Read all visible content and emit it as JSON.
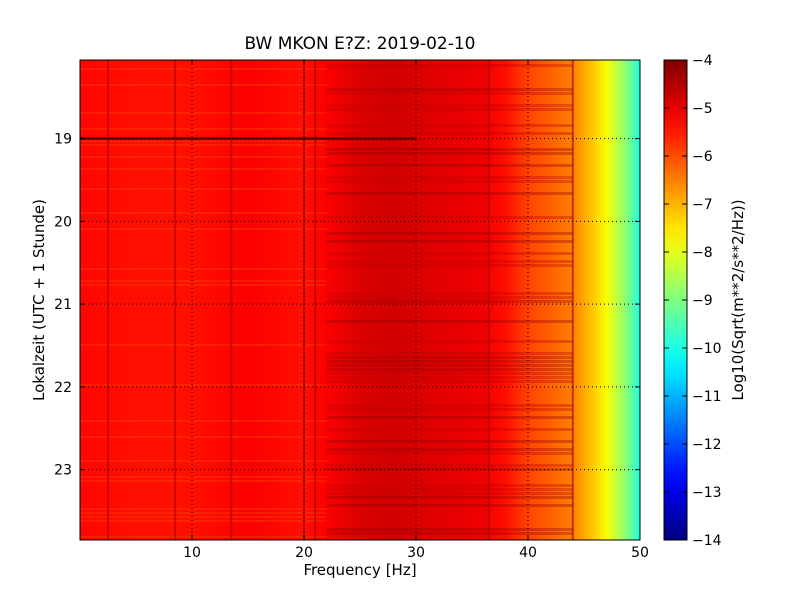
{
  "chart_data": {
    "type": "heatmap",
    "title": "BW MKON E?Z: 2019-02-10",
    "xlabel": "Frequency [Hz]",
    "ylabel": "Lokalzeit (UTC + 1 Stunde)",
    "xlim": [
      0,
      50
    ],
    "ylim_top_to_bottom": [
      18.05,
      23.85
    ],
    "x_ticks": [
      10,
      20,
      30,
      40,
      50
    ],
    "y_ticks": [
      19,
      20,
      21,
      22,
      23
    ],
    "grid": true,
    "colormap": "jet",
    "colorbar": {
      "label": "Log10(Sqrt(m**2/s**2/Hz))",
      "range": [
        -14,
        -4
      ],
      "ticks": [
        -4,
        -5,
        -6,
        -7,
        -8,
        -9,
        -10,
        -11,
        -12,
        -13,
        -14
      ]
    },
    "spectral_profile": {
      "frequency_hz": [
        0,
        5,
        10,
        15,
        20,
        22,
        25,
        28,
        30,
        33,
        36,
        38,
        40,
        42,
        44,
        45,
        46,
        47,
        48,
        49,
        50
      ],
      "log10_amplitude": [
        -5.3,
        -5.4,
        -5.4,
        -5.2,
        -5.4,
        -5.2,
        -4.9,
        -4.8,
        -4.9,
        -5.0,
        -5.1,
        -5.4,
        -5.9,
        -6.2,
        -6.5,
        -6.9,
        -7.3,
        -7.8,
        -8.4,
        -9.1,
        -10.0
      ]
    },
    "narrowband_lines_hz": [
      2.5,
      8.5,
      13.5,
      20.0,
      21.0,
      36.5,
      44.0
    ],
    "transient_time": 19.0
  },
  "colors": {
    "background": "#ffffff",
    "axis": "#000000",
    "grid": "#000000"
  }
}
